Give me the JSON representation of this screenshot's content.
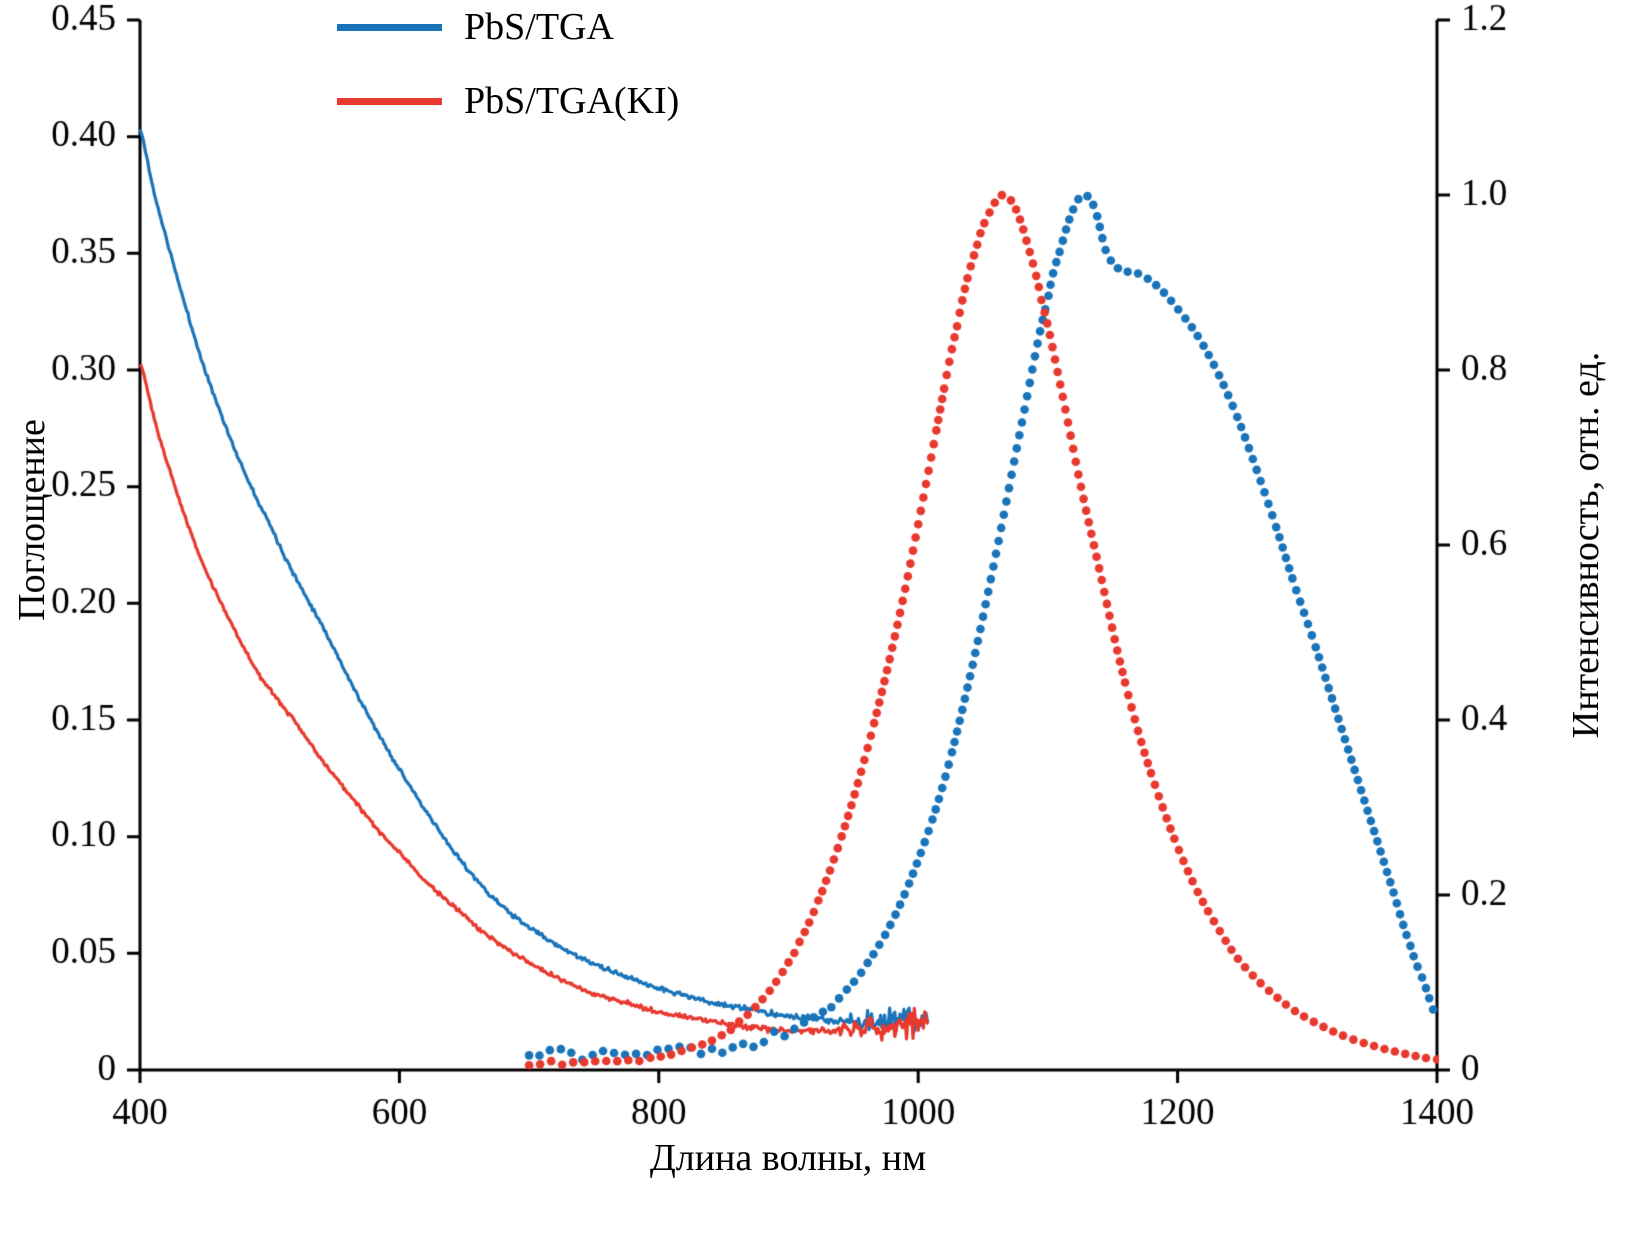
{
  "chart_data": {
    "type": "line",
    "title": "",
    "xlabel": "Длина волны, нм",
    "ylabel_left": "Поглощение",
    "ylabel_right": "Интенсивность, отн. ед.",
    "grid": false,
    "legend_position": "top-left",
    "x_range": [
      400,
      1400
    ],
    "y_left_range": [
      0,
      0.45
    ],
    "y_right_range": [
      0,
      1.2
    ],
    "x_ticks": [
      {
        "v": 400,
        "label": "400"
      },
      {
        "v": 600,
        "label": "600"
      },
      {
        "v": 800,
        "label": "800"
      },
      {
        "v": 1000,
        "label": "1000"
      },
      {
        "v": 1200,
        "label": "1200"
      },
      {
        "v": 1400,
        "label": "1400"
      }
    ],
    "y_left_ticks": [
      {
        "v": 0,
        "label": "0"
      },
      {
        "v": 0.05,
        "label": "0.05"
      },
      {
        "v": 0.1,
        "label": "0.10"
      },
      {
        "v": 0.15,
        "label": "0.15"
      },
      {
        "v": 0.2,
        "label": "0.20"
      },
      {
        "v": 0.25,
        "label": "0.25"
      },
      {
        "v": 0.3,
        "label": "0.30"
      },
      {
        "v": 0.35,
        "label": "0.35"
      },
      {
        "v": 0.4,
        "label": "0.40"
      },
      {
        "v": 0.45,
        "label": "0.45"
      }
    ],
    "y_right_ticks": [
      {
        "v": 0,
        "label": "0"
      },
      {
        "v": 0.2,
        "label": "0.2"
      },
      {
        "v": 0.4,
        "label": "0.4"
      },
      {
        "v": 0.6,
        "label": "0.6"
      },
      {
        "v": 0.8,
        "label": "0.8"
      },
      {
        "v": 1.0,
        "label": "1.0"
      },
      {
        "v": 1.2,
        "label": "1.2"
      }
    ],
    "legend": [
      {
        "label": "PbS/TGA",
        "color": "#1a74ba"
      },
      {
        "label": "PbS/TGA(KI)",
        "color": "#e8392f"
      }
    ],
    "colors": {
      "blue": "#1a74ba",
      "red": "#e8392f",
      "axis": "#000000"
    },
    "series": [
      {
        "name": "PbS/TGA absorption",
        "axis": "left",
        "style": "solid",
        "color": "#1a74ba",
        "seed": 11,
        "noise": [
          [
            400,
            0.0013
          ],
          [
            800,
            0.0016
          ],
          [
            900,
            0.002
          ],
          [
            935,
            0.0028
          ],
          [
            950,
            0.006
          ],
          [
            965,
            0.009
          ],
          [
            1000,
            0.009
          ],
          [
            1008,
            0.006
          ]
        ],
        "points": [
          [
            400,
            0.403
          ],
          [
            410,
            0.378
          ],
          [
            420,
            0.357
          ],
          [
            430,
            0.337
          ],
          [
            440,
            0.318
          ],
          [
            450,
            0.3
          ],
          [
            460,
            0.285
          ],
          [
            470,
            0.27
          ],
          [
            480,
            0.257
          ],
          [
            490,
            0.245
          ],
          [
            500,
            0.234
          ],
          [
            510,
            0.222
          ],
          [
            520,
            0.211
          ],
          [
            530,
            0.201
          ],
          [
            540,
            0.191
          ],
          [
            550,
            0.18
          ],
          [
            560,
            0.169
          ],
          [
            570,
            0.158
          ],
          [
            580,
            0.148
          ],
          [
            590,
            0.138
          ],
          [
            600,
            0.129
          ],
          [
            610,
            0.12
          ],
          [
            620,
            0.111
          ],
          [
            630,
            0.103
          ],
          [
            640,
            0.095
          ],
          [
            650,
            0.088
          ],
          [
            660,
            0.081
          ],
          [
            670,
            0.075
          ],
          [
            680,
            0.07
          ],
          [
            690,
            0.065
          ],
          [
            700,
            0.061
          ],
          [
            720,
            0.054
          ],
          [
            740,
            0.048
          ],
          [
            760,
            0.043
          ],
          [
            780,
            0.039
          ],
          [
            800,
            0.035
          ],
          [
            820,
            0.032
          ],
          [
            840,
            0.029
          ],
          [
            860,
            0.027
          ],
          [
            880,
            0.025
          ],
          [
            900,
            0.023
          ],
          [
            920,
            0.022
          ],
          [
            940,
            0.021
          ],
          [
            960,
            0.021
          ],
          [
            980,
            0.021
          ],
          [
            1000,
            0.021
          ],
          [
            1008,
            0.022
          ]
        ]
      },
      {
        "name": "PbS/TGA(KI) absorption",
        "axis": "left",
        "style": "solid",
        "color": "#e8392f",
        "seed": 23,
        "noise": [
          [
            400,
            0.0013
          ],
          [
            800,
            0.0016
          ],
          [
            900,
            0.002
          ],
          [
            940,
            0.003
          ],
          [
            955,
            0.007
          ],
          [
            970,
            0.01
          ],
          [
            1000,
            0.01
          ],
          [
            1008,
            0.006
          ]
        ],
        "points": [
          [
            400,
            0.303
          ],
          [
            410,
            0.281
          ],
          [
            420,
            0.262
          ],
          [
            430,
            0.245
          ],
          [
            440,
            0.229
          ],
          [
            450,
            0.215
          ],
          [
            460,
            0.203
          ],
          [
            470,
            0.192
          ],
          [
            480,
            0.181
          ],
          [
            490,
            0.171
          ],
          [
            500,
            0.163
          ],
          [
            510,
            0.156
          ],
          [
            520,
            0.149
          ],
          [
            530,
            0.141
          ],
          [
            540,
            0.133
          ],
          [
            550,
            0.126
          ],
          [
            560,
            0.119
          ],
          [
            570,
            0.112
          ],
          [
            580,
            0.105
          ],
          [
            590,
            0.099
          ],
          [
            600,
            0.093
          ],
          [
            610,
            0.087
          ],
          [
            620,
            0.081
          ],
          [
            630,
            0.076
          ],
          [
            640,
            0.071
          ],
          [
            650,
            0.066
          ],
          [
            660,
            0.061
          ],
          [
            670,
            0.057
          ],
          [
            680,
            0.053
          ],
          [
            690,
            0.049
          ],
          [
            700,
            0.046
          ],
          [
            720,
            0.04
          ],
          [
            740,
            0.035
          ],
          [
            760,
            0.031
          ],
          [
            780,
            0.028
          ],
          [
            800,
            0.025
          ],
          [
            820,
            0.023
          ],
          [
            840,
            0.021
          ],
          [
            860,
            0.019
          ],
          [
            880,
            0.018
          ],
          [
            900,
            0.017
          ],
          [
            920,
            0.017
          ],
          [
            940,
            0.017
          ],
          [
            960,
            0.018
          ],
          [
            980,
            0.019
          ],
          [
            1000,
            0.02
          ],
          [
            1008,
            0.02
          ]
        ]
      },
      {
        "name": "PbS/TGA photoluminescence",
        "axis": "right",
        "style": "dotted",
        "color": "#1a74ba",
        "seed": 37,
        "dot_radius": 4.3,
        "dot_spacing": 10.5,
        "noise": [
          [
            700,
            0.012
          ],
          [
            880,
            0.009
          ],
          [
            930,
            0.005
          ],
          [
            960,
            0.002
          ],
          [
            990,
            0
          ]
        ],
        "points": [
          [
            700,
            0.015
          ],
          [
            720,
            0.02
          ],
          [
            740,
            0.015
          ],
          [
            760,
            0.02
          ],
          [
            780,
            0.018
          ],
          [
            800,
            0.022
          ],
          [
            820,
            0.025
          ],
          [
            840,
            0.02
          ],
          [
            860,
            0.028
          ],
          [
            880,
            0.035
          ],
          [
            900,
            0.045
          ],
          [
            920,
            0.06
          ],
          [
            940,
            0.085
          ],
          [
            960,
            0.12
          ],
          [
            980,
            0.17
          ],
          [
            1000,
            0.24
          ],
          [
            1020,
            0.33
          ],
          [
            1040,
            0.45
          ],
          [
            1060,
            0.59
          ],
          [
            1080,
            0.74
          ],
          [
            1100,
            0.88
          ],
          [
            1110,
            0.94
          ],
          [
            1120,
            0.985
          ],
          [
            1128,
            1.0
          ],
          [
            1136,
            0.985
          ],
          [
            1145,
            0.935
          ],
          [
            1155,
            0.915
          ],
          [
            1170,
            0.91
          ],
          [
            1185,
            0.895
          ],
          [
            1200,
            0.87
          ],
          [
            1215,
            0.84
          ],
          [
            1230,
            0.8
          ],
          [
            1245,
            0.75
          ],
          [
            1260,
            0.69
          ],
          [
            1275,
            0.625
          ],
          [
            1290,
            0.555
          ],
          [
            1305,
            0.49
          ],
          [
            1320,
            0.42
          ],
          [
            1335,
            0.35
          ],
          [
            1350,
            0.28
          ],
          [
            1365,
            0.21
          ],
          [
            1380,
            0.14
          ],
          [
            1390,
            0.1
          ],
          [
            1400,
            0.06
          ]
        ]
      },
      {
        "name": "PbS/TGA(KI) photoluminescence",
        "axis": "right",
        "style": "dotted",
        "color": "#e8392f",
        "seed": 51,
        "dot_radius": 4.3,
        "dot_spacing": 10.5,
        "noise": [
          [
            700,
            0.004
          ],
          [
            900,
            0.002
          ],
          [
            940,
            0
          ]
        ],
        "points": [
          [
            700,
            0.008
          ],
          [
            730,
            0.008
          ],
          [
            760,
            0.01
          ],
          [
            790,
            0.012
          ],
          [
            810,
            0.018
          ],
          [
            830,
            0.028
          ],
          [
            850,
            0.042
          ],
          [
            870,
            0.065
          ],
          [
            890,
            0.1
          ],
          [
            910,
            0.15
          ],
          [
            930,
            0.22
          ],
          [
            950,
            0.31
          ],
          [
            970,
            0.42
          ],
          [
            990,
            0.55
          ],
          [
            1010,
            0.7
          ],
          [
            1030,
            0.85
          ],
          [
            1045,
            0.94
          ],
          [
            1055,
            0.98
          ],
          [
            1065,
            1.0
          ],
          [
            1075,
            0.985
          ],
          [
            1085,
            0.94
          ],
          [
            1095,
            0.88
          ],
          [
            1110,
            0.78
          ],
          [
            1125,
            0.67
          ],
          [
            1140,
            0.57
          ],
          [
            1155,
            0.47
          ],
          [
            1170,
            0.385
          ],
          [
            1185,
            0.315
          ],
          [
            1200,
            0.255
          ],
          [
            1215,
            0.205
          ],
          [
            1230,
            0.165
          ],
          [
            1245,
            0.13
          ],
          [
            1260,
            0.105
          ],
          [
            1275,
            0.085
          ],
          [
            1290,
            0.068
          ],
          [
            1305,
            0.055
          ],
          [
            1320,
            0.044
          ],
          [
            1335,
            0.035
          ],
          [
            1350,
            0.028
          ],
          [
            1365,
            0.022
          ],
          [
            1380,
            0.017
          ],
          [
            1400,
            0.012
          ]
        ]
      }
    ]
  }
}
